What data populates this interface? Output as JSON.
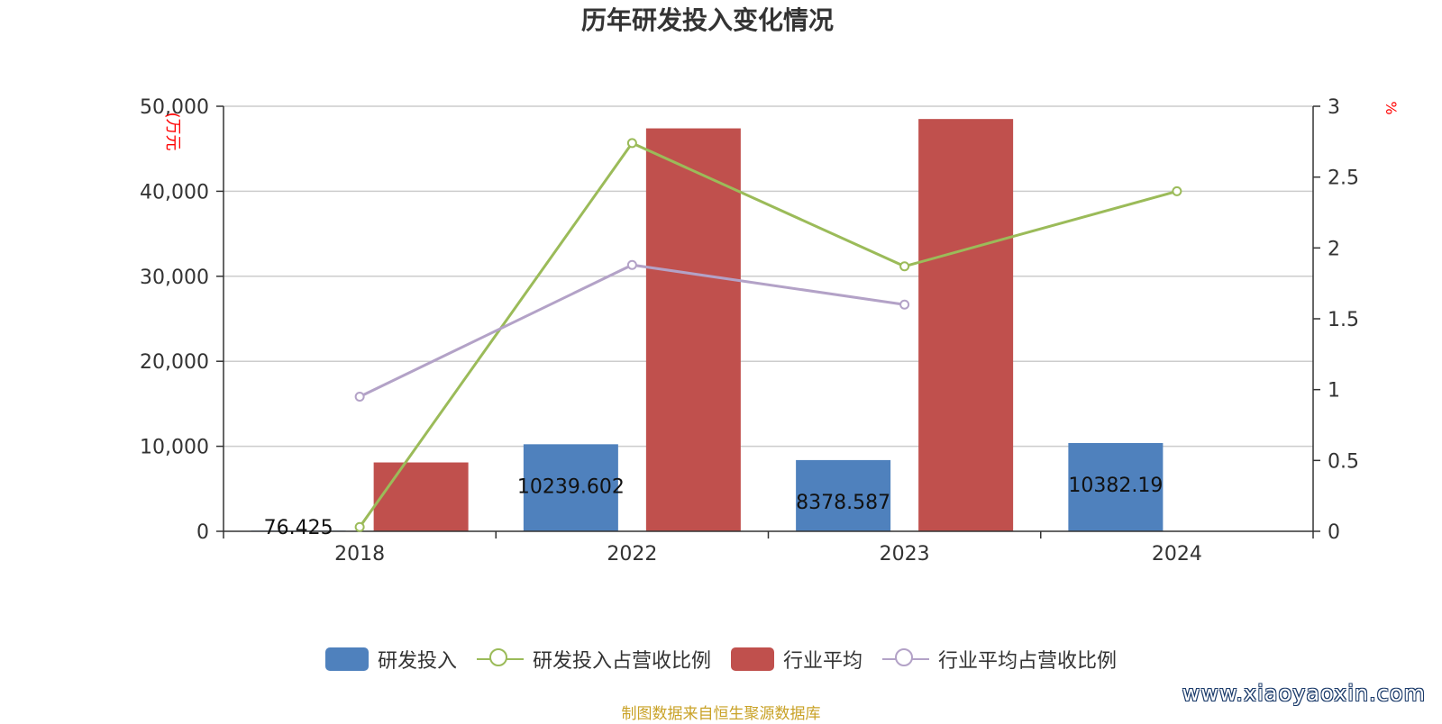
{
  "chart_data": {
    "type": "bar",
    "title": "历年研发投入变化情况",
    "categories": [
      "2018",
      "2022",
      "2023",
      "2024"
    ],
    "y_left": {
      "unit_label": "(万元",
      "ylim": [
        0,
        50000
      ],
      "ticks": [
        "0",
        "10,000",
        "20,000",
        "30,000",
        "40,000",
        "50,000"
      ],
      "tick_values": [
        0,
        10000,
        20000,
        30000,
        40000,
        50000
      ]
    },
    "y_right": {
      "unit_label": "%",
      "ylim": [
        0,
        3
      ],
      "ticks": [
        "0",
        "0.5",
        "1",
        "1.5",
        "2",
        "2.5",
        "3"
      ],
      "tick_values": [
        0,
        0.5,
        1,
        1.5,
        2,
        2.5,
        3
      ]
    },
    "grid": true,
    "legend_position": "bottom",
    "series": [
      {
        "name": "研发投入",
        "type": "bar",
        "axis": "left",
        "color": "#4f81bd",
        "values": [
          76.425,
          10239.602,
          8378.587,
          10382.19
        ],
        "labels": [
          "76.425",
          "10239.602",
          "8378.587",
          "10382.19"
        ]
      },
      {
        "name": "研发投入占营收比例",
        "type": "line",
        "axis": "right",
        "color": "#9bbb59",
        "values": [
          0.03,
          2.74,
          1.87,
          2.4
        ]
      },
      {
        "name": "行业平均",
        "type": "bar",
        "axis": "left",
        "color": "#c0504d",
        "values": [
          8100,
          47400,
          48500,
          null
        ]
      },
      {
        "name": "行业平均占营收比例",
        "type": "line",
        "axis": "right",
        "color": "#b3a2c7",
        "values": [
          0.95,
          1.88,
          1.6,
          null
        ]
      }
    ]
  },
  "footer": {
    "source": "制图数据来自恒生聚源数据库",
    "watermark": "www.xiaoyaoxin.com"
  }
}
